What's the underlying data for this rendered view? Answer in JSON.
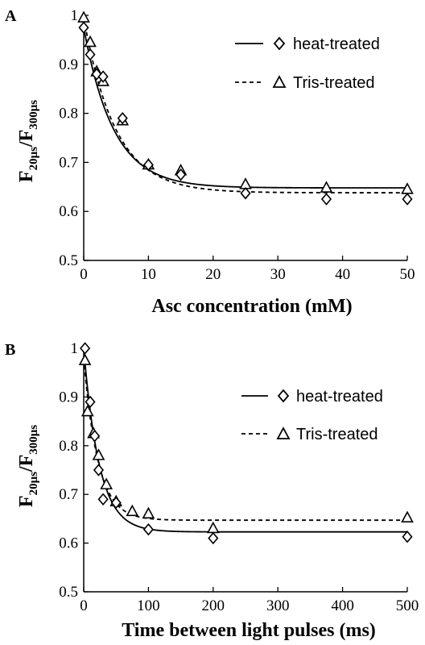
{
  "chart_data": [
    {
      "type": "scatter",
      "panel": "A",
      "xlabel": "Asc concentration (mM)",
      "ylabel": "F20μs/F300μs",
      "ylabel_parts": {
        "main1": "F",
        "sub1": "20μs",
        "slash": "/",
        "main2": "F",
        "sub2": "300μs"
      },
      "xlim": [
        0,
        50
      ],
      "ylim": [
        0.5,
        1
      ],
      "xticks": [
        0,
        10,
        20,
        30,
        40,
        50
      ],
      "yticks": [
        0.5,
        0.6,
        0.7,
        0.8,
        0.9,
        1
      ],
      "ytick_labels": [
        "0.5",
        "0.6",
        "0.7",
        "0.8",
        "0.9",
        "1"
      ],
      "legend_position": "top-right",
      "grid": false,
      "series": [
        {
          "name": "heat-treated",
          "marker": "diamond",
          "line": "solid",
          "points": [
            [
              0,
              0.975
            ],
            [
              1,
              0.92
            ],
            [
              2,
              0.88
            ],
            [
              3,
              0.875
            ],
            [
              6,
              0.79
            ],
            [
              10,
              0.695
            ],
            [
              15,
              0.675
            ],
            [
              25,
              0.637
            ],
            [
              37.5,
              0.625
            ],
            [
              50,
              0.625
            ]
          ],
          "fit": {
            "plateau": 0.648,
            "amplitude": 0.327,
            "tau": 4.6
          }
        },
        {
          "name": "Tris-treated",
          "marker": "triangle",
          "line": "dashed",
          "points": [
            [
              0,
              0.995
            ],
            [
              1,
              0.945
            ],
            [
              2,
              0.885
            ],
            [
              3,
              0.865
            ],
            [
              6,
              0.785
            ],
            [
              10,
              0.695
            ],
            [
              15,
              0.683
            ],
            [
              25,
              0.655
            ],
            [
              37.5,
              0.648
            ],
            [
              50,
              0.645
            ]
          ],
          "fit": {
            "plateau": 0.638,
            "amplitude": 0.357,
            "tau": 4.9
          }
        }
      ]
    },
    {
      "type": "scatter",
      "panel": "B",
      "xlabel": "Time between light pulses (ms)",
      "ylabel": "F20μs/F300μs",
      "ylabel_parts": {
        "main1": "F",
        "sub1": "20μs",
        "slash": "/",
        "main2": "F",
        "sub2": "300μs"
      },
      "xlim": [
        0,
        500
      ],
      "ylim": [
        0.5,
        1
      ],
      "xticks": [
        0,
        100,
        200,
        300,
        400,
        500
      ],
      "yticks": [
        0.5,
        0.6,
        0.7,
        0.8,
        0.9,
        1
      ],
      "ytick_labels": [
        "0.5",
        "0.6",
        "0.7",
        "0.8",
        "0.9",
        "1"
      ],
      "legend_position": "right",
      "grid": false,
      "series": [
        {
          "name": "heat-treated",
          "marker": "diamond",
          "line": "solid",
          "points": [
            [
              2,
              1.0
            ],
            [
              10,
              0.89
            ],
            [
              17,
              0.82
            ],
            [
              23,
              0.75
            ],
            [
              30,
              0.69
            ],
            [
              50,
              0.683
            ],
            [
              100,
              0.628
            ],
            [
              200,
              0.61
            ],
            [
              500,
              0.613
            ]
          ],
          "fit": {
            "plateau": 0.623,
            "amplitude": 0.377,
            "tau": 24
          }
        },
        {
          "name": "Tris-treated",
          "marker": "triangle",
          "line": "dashed",
          "points": [
            [
              2,
              0.975
            ],
            [
              6,
              0.87
            ],
            [
              15,
              0.825
            ],
            [
              23,
              0.78
            ],
            [
              35,
              0.72
            ],
            [
              50,
              0.685
            ],
            [
              75,
              0.665
            ],
            [
              100,
              0.66
            ],
            [
              200,
              0.63
            ],
            [
              500,
              0.652
            ]
          ],
          "fit": {
            "plateau": 0.647,
            "amplitude": 0.333,
            "tau": 22
          }
        }
      ]
    }
  ]
}
